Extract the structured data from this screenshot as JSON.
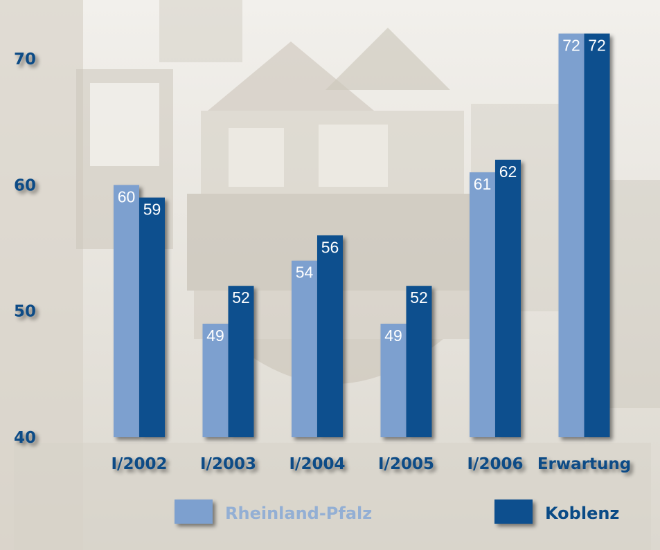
{
  "colors": {
    "series1": "#7da0cf",
    "series2": "#0b4f8e",
    "axis": "#0a4b86",
    "background": "#e9e6df",
    "building": "#cdc8bd"
  },
  "chart_data": {
    "type": "bar",
    "title": "",
    "xlabel": "",
    "ylabel": "",
    "categories": [
      "I/2002",
      "I/2003",
      "I/2004",
      "I/2005",
      "I/2006",
      "Erwartung"
    ],
    "series": [
      {
        "name": "Rheinland-Pfalz",
        "values": [
          60,
          49,
          54,
          49,
          61,
          72
        ]
      },
      {
        "name": "Koblenz",
        "values": [
          59,
          52,
          56,
          52,
          62,
          72
        ]
      }
    ],
    "ylim": [
      40,
      72
    ],
    "yticks": [
      40,
      50,
      60,
      70
    ],
    "legend_position": "bottom",
    "grid": false
  }
}
